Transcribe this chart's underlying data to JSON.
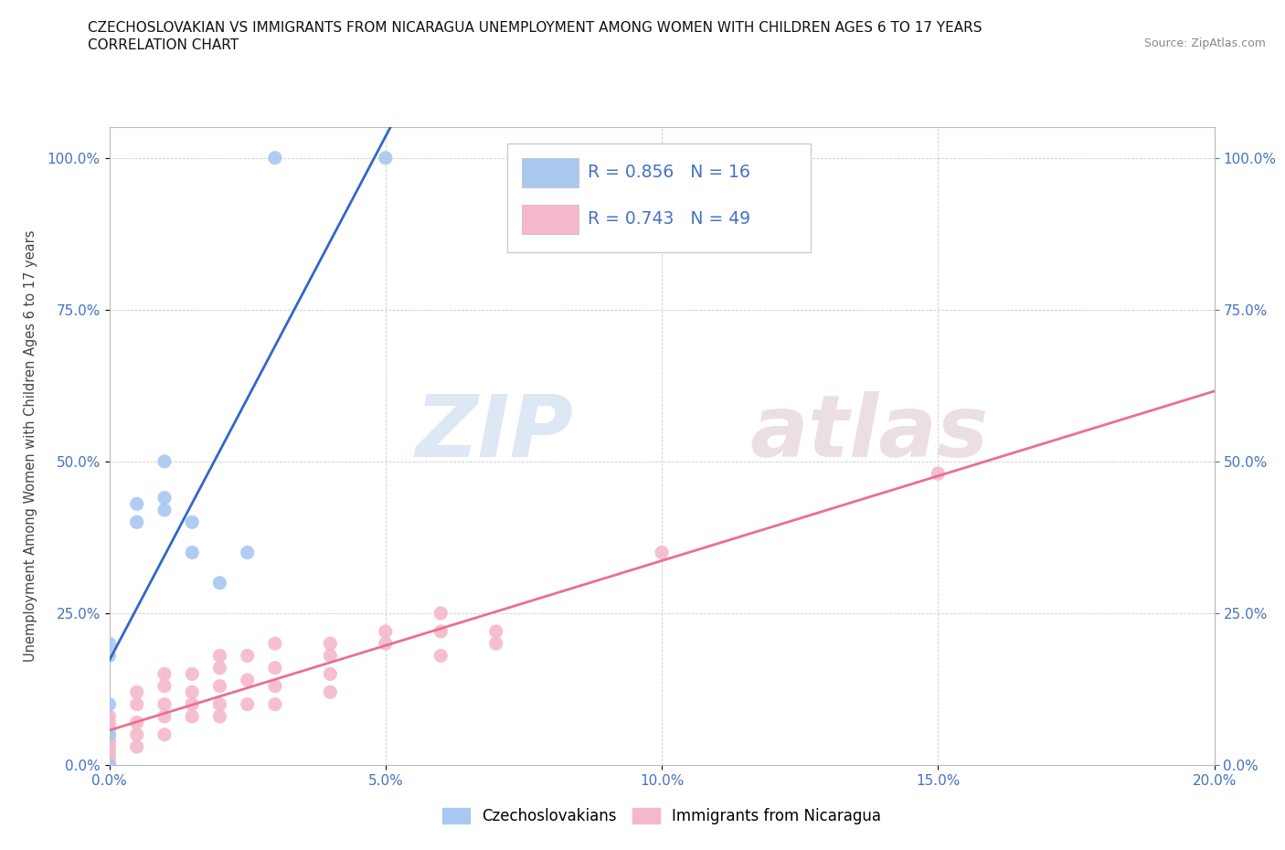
{
  "title_line1": "CZECHOSLOVAKIAN VS IMMIGRANTS FROM NICARAGUA UNEMPLOYMENT AMONG WOMEN WITH CHILDREN AGES 6 TO 17 YEARS",
  "title_line2": "CORRELATION CHART",
  "source_text": "Source: ZipAtlas.com",
  "ylabel": "Unemployment Among Women with Children Ages 6 to 17 years",
  "xlim": [
    0.0,
    0.2
  ],
  "ylim": [
    0.0,
    1.05
  ],
  "xtick_vals": [
    0.0,
    0.05,
    0.1,
    0.15,
    0.2
  ],
  "xtick_labels": [
    "0.0%",
    "5.0%",
    "10.0%",
    "15.0%",
    "20.0%"
  ],
  "ytick_vals": [
    0.0,
    0.25,
    0.5,
    0.75,
    1.0
  ],
  "ytick_labels": [
    "0.0%",
    "25.0%",
    "50.0%",
    "75.0%",
    "100.0%"
  ],
  "blue_color": "#A8C8F0",
  "pink_color": "#F5B8CA",
  "blue_line_color": "#3366CC",
  "pink_line_color": "#E87090",
  "legend_text_color": "#4472C4",
  "watermark_color": "#D0DFF0",
  "watermark_color2": "#D0C0D0",
  "R_blue": 0.856,
  "N_blue": 16,
  "R_pink": 0.743,
  "N_pink": 49,
  "blue_x": [
    0.0,
    0.0,
    0.0,
    0.0,
    0.0,
    0.005,
    0.005,
    0.01,
    0.01,
    0.01,
    0.015,
    0.015,
    0.02,
    0.025,
    0.03,
    0.05
  ],
  "blue_y": [
    0.0,
    0.05,
    0.1,
    0.18,
    0.2,
    0.4,
    0.43,
    0.42,
    0.44,
    0.5,
    0.35,
    0.4,
    0.3,
    0.35,
    1.0,
    1.0
  ],
  "pink_x": [
    0.0,
    0.0,
    0.0,
    0.0,
    0.0,
    0.0,
    0.0,
    0.0,
    0.0,
    0.0,
    0.005,
    0.005,
    0.005,
    0.005,
    0.005,
    0.01,
    0.01,
    0.01,
    0.01,
    0.01,
    0.015,
    0.015,
    0.015,
    0.015,
    0.02,
    0.02,
    0.02,
    0.02,
    0.02,
    0.025,
    0.025,
    0.025,
    0.03,
    0.03,
    0.03,
    0.03,
    0.04,
    0.04,
    0.04,
    0.04,
    0.05,
    0.05,
    0.06,
    0.06,
    0.06,
    0.07,
    0.07,
    0.1,
    0.15
  ],
  "pink_y": [
    0.0,
    0.0,
    0.01,
    0.02,
    0.03,
    0.04,
    0.05,
    0.06,
    0.07,
    0.08,
    0.03,
    0.05,
    0.07,
    0.1,
    0.12,
    0.05,
    0.08,
    0.1,
    0.13,
    0.15,
    0.08,
    0.1,
    0.12,
    0.15,
    0.08,
    0.1,
    0.13,
    0.16,
    0.18,
    0.1,
    0.14,
    0.18,
    0.1,
    0.13,
    0.16,
    0.2,
    0.12,
    0.15,
    0.18,
    0.2,
    0.2,
    0.22,
    0.18,
    0.22,
    0.25,
    0.2,
    0.22,
    0.35,
    0.48
  ]
}
